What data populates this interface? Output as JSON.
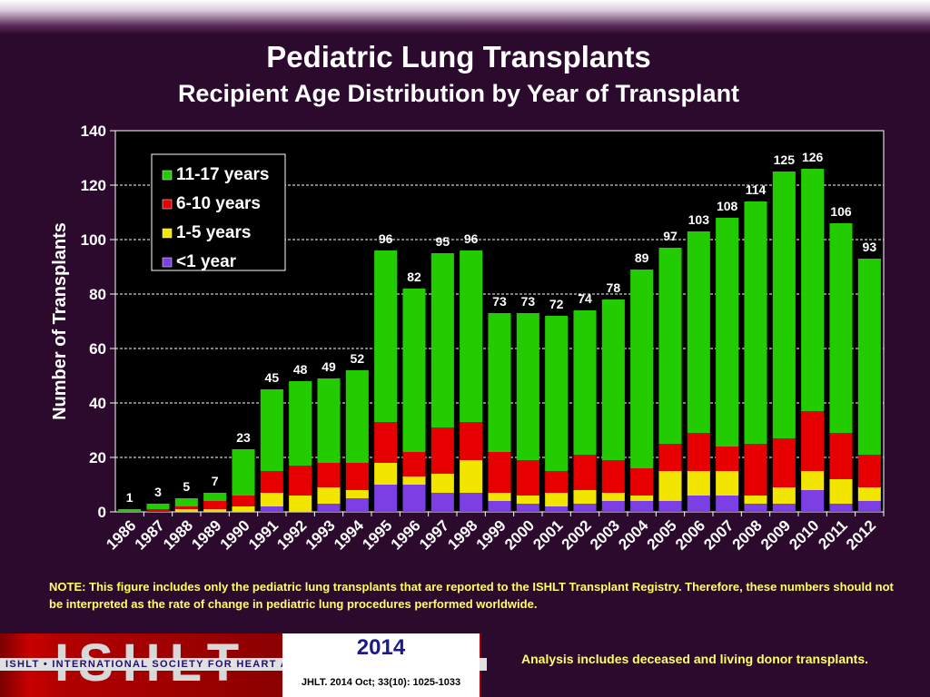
{
  "header": {
    "title": "Pediatric Lung Transplants",
    "subtitle": "Recipient Age Distribution by Year of Transplant"
  },
  "chart_data": {
    "type": "bar",
    "stacked": true,
    "ylabel": "Number of Transplants",
    "xlabel": "",
    "ylim": [
      0,
      140
    ],
    "yticks": [
      0,
      20,
      40,
      60,
      80,
      100,
      120,
      140
    ],
    "grid": true,
    "legend_position": "top-left",
    "categories": [
      "1986",
      "1987",
      "1988",
      "1989",
      "1990",
      "1991",
      "1992",
      "1993",
      "1994",
      "1995",
      "1996",
      "1997",
      "1998",
      "1999",
      "2000",
      "2001",
      "2002",
      "2003",
      "2004",
      "2005",
      "2006",
      "2007",
      "2008",
      "2009",
      "2010",
      "2011",
      "2012"
    ],
    "totals": [
      1,
      3,
      5,
      7,
      23,
      45,
      48,
      49,
      52,
      96,
      82,
      95,
      96,
      73,
      73,
      72,
      74,
      78,
      89,
      97,
      103,
      108,
      114,
      125,
      126,
      106,
      93
    ],
    "series": [
      {
        "name": "<1 year",
        "color": "#7b3fe4",
        "values": [
          0,
          0,
          0,
          0,
          0,
          2,
          0,
          3,
          5,
          10,
          10,
          7,
          7,
          4,
          3,
          2,
          3,
          4,
          4,
          4,
          6,
          6,
          3,
          3,
          8,
          3,
          4
        ]
      },
      {
        "name": "1-5 years",
        "color": "#f2e600",
        "values": [
          0,
          0,
          1,
          1,
          2,
          5,
          6,
          6,
          3,
          8,
          3,
          7,
          12,
          3,
          3,
          5,
          5,
          3,
          2,
          11,
          9,
          9,
          3,
          6,
          7,
          9,
          5
        ]
      },
      {
        "name": "6-10 years",
        "color": "#e60000",
        "values": [
          0,
          1,
          1,
          3,
          4,
          8,
          11,
          9,
          10,
          15,
          9,
          17,
          14,
          15,
          13,
          8,
          13,
          12,
          10,
          10,
          14,
          9,
          19,
          18,
          22,
          17,
          12
        ]
      },
      {
        "name": "11-17 years",
        "color": "#22cc00",
        "values": [
          1,
          2,
          3,
          3,
          17,
          30,
          31,
          31,
          34,
          63,
          60,
          64,
          63,
          51,
          54,
          57,
          53,
          59,
          73,
          72,
          74,
          84,
          89,
          98,
          89,
          77,
          72
        ]
      }
    ],
    "legend_order": [
      "11-17 years",
      "6-10 years",
      "1-5 years",
      "<1 year"
    ]
  },
  "colors": {
    "background": "#2b0a2d",
    "plot_background": "#000000",
    "text": "#ffffff",
    "note_text": "#ffff66"
  },
  "note": "NOTE: This figure includes only the pediatric lung transplants that are reported to the ISHLT Transplant Registry. Therefore, these numbers should not be interpreted as the rate of change in pediatric lung procedures performed worldwide.",
  "footer": {
    "logo_text": "ISHLT",
    "org_name": "ISHLT • INTERNATIONAL SOCIETY FOR HEART AND LUNG TRANSPLANTATION",
    "year": "2014",
    "citation": "JHLT. 2014 Oct; 33(10): 1025-1033",
    "analysis": "Analysis includes deceased and living donor transplants."
  }
}
